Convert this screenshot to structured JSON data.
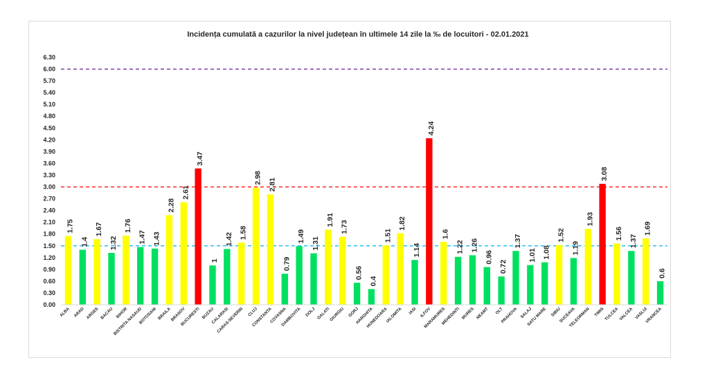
{
  "chart_data": {
    "type": "bar",
    "title": "Incidența cumulată a cazurilor la nivel județean în ultimele 14 zile la ‰ de locuitori - 02.01.2021",
    "xlabel": "",
    "ylabel": "",
    "ylim": [
      0,
      6.3
    ],
    "yticks": [
      "0.00",
      "0.30",
      "0.60",
      "0.90",
      "1.20",
      "1.50",
      "1.80",
      "2.10",
      "2.40",
      "2.70",
      "3.00",
      "3.30",
      "3.60",
      "3.90",
      "4.20",
      "4.50",
      "4.80",
      "5.10",
      "5.40",
      "5.70",
      "6.00",
      "6.30"
    ],
    "grid": false,
    "legend": "none",
    "categories": [
      "ALBA",
      "ARAD",
      "ARGES",
      "BACAU",
      "BIHOR",
      "BISTRITA NASAUD",
      "BOTOSANI",
      "BRAILA",
      "BRASOV",
      "BUCURESTI",
      "BUZAU",
      "CALARASI",
      "CARAS-SEVERIN",
      "CLUJ",
      "CONSTANTA",
      "COVASNA",
      "DAMBOVITA",
      "DOLJ",
      "GALATI",
      "GIURGIU",
      "GORJ",
      "HARGHITA",
      "HUNEDOARA",
      "IALOMITA",
      "IASI",
      "ILFOV",
      "MARAMURES",
      "MEHEDINTI",
      "MURES",
      "NEAMT",
      "OLT",
      "PRAHOVA",
      "SALAJ",
      "SATU MARE",
      "SIBIU",
      "SUCEAVA",
      "TELEORMAN",
      "TIMIS",
      "TULCEA",
      "VALCEA",
      "VASLUI",
      "VRANCEA"
    ],
    "values": [
      1.75,
      1.4,
      1.67,
      1.32,
      1.76,
      1.47,
      1.43,
      2.28,
      2.61,
      3.47,
      1,
      1.42,
      1.58,
      2.98,
      2.81,
      0.79,
      1.49,
      1.31,
      1.91,
      1.73,
      0.56,
      0.4,
      1.51,
      1.82,
      1.14,
      4.24,
      1.6,
      1.22,
      1.26,
      0.96,
      0.72,
      1.37,
      1.01,
      1.08,
      1.52,
      1.19,
      1.93,
      3.08,
      1.56,
      1.37,
      1.69,
      0.6
    ],
    "value_labels": [
      "1.75",
      "1.4",
      "1.67",
      "1.32",
      "1.76",
      "1.47",
      "1.43",
      "2.28",
      "2.61",
      "3.47",
      "1",
      "1.42",
      "1.58",
      "2.98",
      "2.81",
      "0.79",
      "1.49",
      "1.31",
      "1.91",
      "1.73",
      "0.56",
      "0.4",
      "1.51",
      "1.82",
      "1.14",
      "4.24",
      "1.6",
      "1.22",
      "1.26",
      "0.96",
      "0.72",
      "1.37",
      "1.01",
      "1.08",
      "1.52",
      "1.19",
      "1.93",
      "3.08",
      "1.56",
      "1.37",
      "1.69",
      "0.6"
    ],
    "thresholds": [
      {
        "value": 1.5,
        "color": "#00b0f0"
      },
      {
        "value": 3.0,
        "color": "#ff0000"
      },
      {
        "value": 6.0,
        "color": "#7030a0"
      }
    ],
    "colors": {
      "low": "#00e060",
      "mid": "#ffff00",
      "high": "#ff0000"
    }
  }
}
